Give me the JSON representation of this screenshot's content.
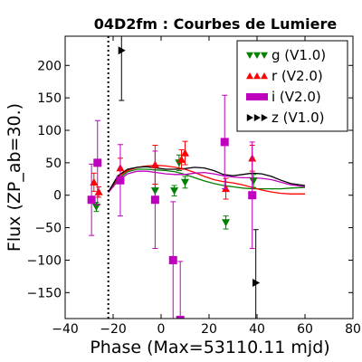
{
  "chart_data": {
    "type": "scatter",
    "title": "04D2fm : Courbes de Lumiere",
    "xlabel": "Phase (Max=53110.11 mjd)",
    "ylabel": "Flux (ZP_ab=30.)",
    "xlim": [
      -40,
      80
    ],
    "ylim": [
      -190,
      245
    ],
    "xticks": [
      -40,
      -20,
      0,
      20,
      40,
      60,
      80
    ],
    "yticks": [
      -150,
      -100,
      -50,
      0,
      50,
      100,
      150,
      200
    ],
    "grid": false,
    "legend_position": "top-right",
    "max_line_x": -22,
    "series": [
      {
        "name": "g (V1.0)",
        "color": "#008000",
        "marker": "triangle-down",
        "points": [
          {
            "x": -27,
            "y": -18,
            "err": 7
          },
          {
            "x": -2.5,
            "y": 7,
            "err": 10
          },
          {
            "x": 5.5,
            "y": 7,
            "err": 8
          },
          {
            "x": 7.5,
            "y": 50,
            "err": 12
          },
          {
            "x": 10,
            "y": 20,
            "err": 9
          },
          {
            "x": 27,
            "y": -42,
            "err": 10
          },
          {
            "x": 38.5,
            "y": 22,
            "err": 10
          }
        ]
      },
      {
        "name": "r (V2.0)",
        "color": "#ff0000",
        "marker": "triangle-up",
        "points": [
          {
            "x": -28,
            "y": 20,
            "err": 14
          },
          {
            "x": -26,
            "y": 5,
            "err": 8
          },
          {
            "x": -17,
            "y": 42,
            "err": 15
          },
          {
            "x": -2.5,
            "y": 47,
            "err": 30
          },
          {
            "x": 8.5,
            "y": 55,
            "err": 15
          },
          {
            "x": 10,
            "y": 65,
            "err": 18
          },
          {
            "x": 27,
            "y": 10,
            "err": 16
          },
          {
            "x": 38,
            "y": 57,
            "err": 20
          }
        ]
      },
      {
        "name": "i (V2.0)",
        "color": "#bf00bf",
        "marker": "square",
        "points": [
          {
            "x": -29,
            "y": -7,
            "err": 55
          },
          {
            "x": -26.5,
            "y": 50,
            "err": 65
          },
          {
            "x": -17,
            "y": 23,
            "err": 55
          },
          {
            "x": -2.5,
            "y": -7,
            "err": 75
          },
          {
            "x": 5,
            "y": -100,
            "err": 90
          },
          {
            "x": 8,
            "y": -192,
            "err": 90
          },
          {
            "x": 26.5,
            "y": 82,
            "err": 72
          },
          {
            "x": 38,
            "y": 0,
            "err": 82
          }
        ]
      },
      {
        "name": "z (V1.0)",
        "color": "#000000",
        "marker": "triangle-right",
        "points": [
          {
            "x": -16.5,
            "y": 223,
            "err": 77
          },
          {
            "x": 39.5,
            "y": -135,
            "err": 82
          }
        ]
      }
    ],
    "fit_curves": [
      {
        "color": "#008000",
        "x": [
          -22,
          -18,
          -14,
          -10,
          -6,
          -2,
          2,
          6,
          10,
          14,
          18,
          22,
          26,
          30,
          34,
          38,
          42,
          46,
          50,
          54,
          60
        ],
        "y": [
          5,
          25,
          36,
          40,
          40,
          39,
          38,
          36,
          32,
          27,
          22,
          18,
          15,
          13,
          11,
          10,
          10,
          10,
          10,
          11,
          12
        ]
      },
      {
        "color": "#ff0000",
        "x": [
          -22,
          -18,
          -14,
          -10,
          -6,
          -2,
          2,
          6,
          10,
          14,
          18,
          22,
          26,
          30,
          34,
          38,
          42,
          46,
          50,
          54,
          60
        ],
        "y": [
          5,
          28,
          38,
          43,
          45,
          46,
          45,
          43,
          40,
          35,
          29,
          24,
          21,
          19,
          16,
          12,
          8,
          5,
          3,
          2,
          2
        ]
      },
      {
        "color": "#bf00bf",
        "x": [
          -22,
          -18,
          -14,
          -10,
          -6,
          -2,
          2,
          6,
          10,
          14,
          18,
          22,
          26,
          30,
          34,
          38,
          42,
          46,
          50,
          54,
          60
        ],
        "y": [
          4,
          22,
          33,
          37,
          37,
          35,
          33,
          32,
          32,
          34,
          35,
          33,
          30,
          28,
          27,
          27,
          26,
          24,
          20,
          16,
          13
        ]
      },
      {
        "color": "#000000",
        "x": [
          -22,
          -18,
          -14,
          -10,
          -6,
          -2,
          2,
          6,
          10,
          14,
          18,
          22,
          26,
          30,
          34,
          38,
          42,
          46,
          50,
          54,
          60
        ],
        "y": [
          5,
          30,
          40,
          43,
          44,
          42,
          40,
          40,
          41,
          43,
          42,
          38,
          32,
          30,
          32,
          34,
          33,
          29,
          23,
          18,
          15
        ]
      }
    ]
  }
}
